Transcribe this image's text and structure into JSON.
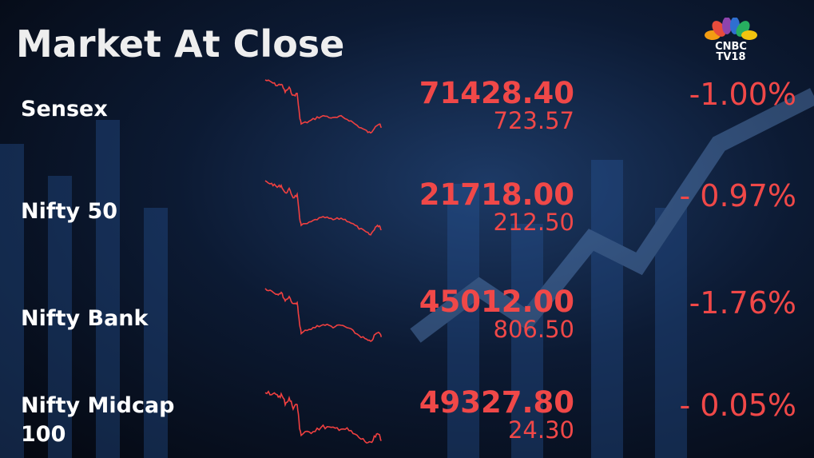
{
  "title": "Market At Close",
  "logo": {
    "line1": "CNBC",
    "line2": "TV18"
  },
  "colors": {
    "negative": "#f04848",
    "background": "#0c1a33"
  },
  "rows": [
    {
      "name": "Sensex",
      "value": "71428.40",
      "change": "723.57",
      "percent": "-1.00%"
    },
    {
      "name": "Nifty 50",
      "value": "21718.00",
      "change": "212.50",
      "percent": "- 0.97%"
    },
    {
      "name": "Nifty Bank",
      "value": "45012.00",
      "change": "806.50",
      "percent": "-1.76%"
    },
    {
      "name": "Nifty Midcap 100",
      "value": "49327.80",
      "change": "24.30",
      "percent": "- 0.05%"
    }
  ]
}
